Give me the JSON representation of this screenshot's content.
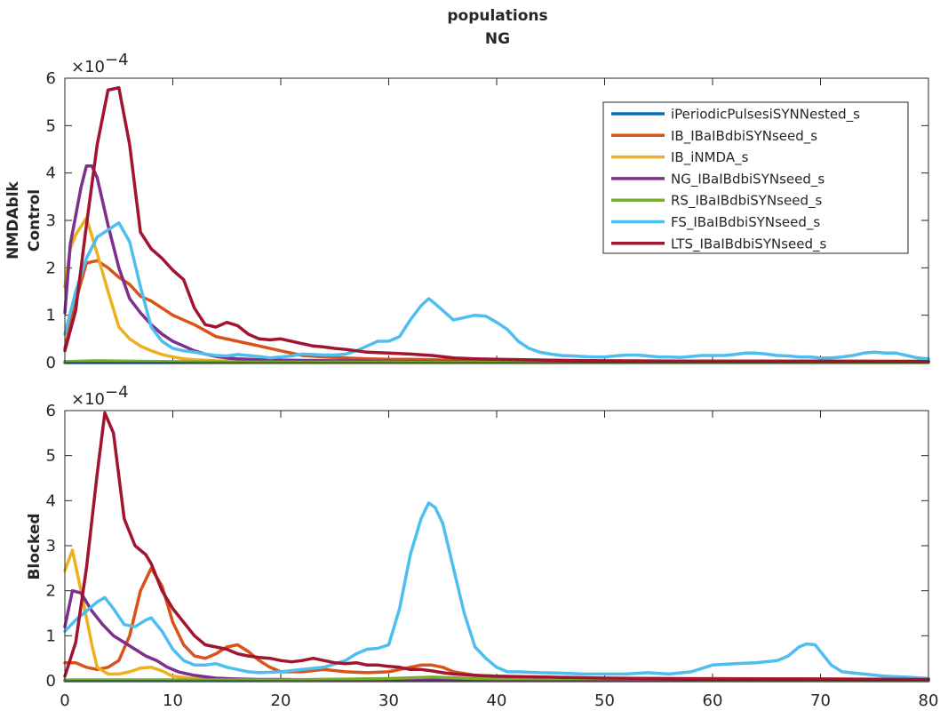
{
  "figure": {
    "title_line1": "populations",
    "title_line2": "NG"
  },
  "chart_data": [
    {
      "type": "line",
      "panel": "top",
      "ylabel_line1": "NMDAblk",
      "ylabel_line2": "Control",
      "xlim": [
        0,
        80
      ],
      "ylim": [
        0,
        6
      ],
      "y_multiplier_label": "×10",
      "y_multiplier_exponent": "−4",
      "xticks": [],
      "yticks": [
        "0",
        "1",
        "2",
        "3",
        "4",
        "5",
        "6"
      ],
      "legend": {
        "placement": "top-right"
      },
      "series": [
        {
          "name": "iPeriodicPulsesiSYNNested_s",
          "color": "#0072bd",
          "x": [
            0,
            80
          ],
          "y": [
            0,
            0
          ]
        },
        {
          "name": "IB_IBaIBdbiSYNseed_s",
          "color": "#d95319",
          "x": [
            0,
            1,
            2,
            3,
            4,
            5,
            6,
            7,
            8,
            9,
            10,
            12,
            14,
            16,
            18,
            20,
            22,
            24,
            26,
            28,
            30,
            32,
            34,
            36,
            38,
            40,
            45,
            50,
            60,
            70,
            80
          ],
          "y": [
            0.3,
            1.3,
            2.1,
            2.15,
            2.0,
            1.8,
            1.65,
            1.4,
            1.3,
            1.15,
            1.0,
            0.8,
            0.55,
            0.45,
            0.35,
            0.25,
            0.15,
            0.12,
            0.1,
            0.08,
            0.07,
            0.07,
            0.06,
            0.05,
            0.05,
            0.04,
            0.03,
            0.03,
            0.03,
            0.03,
            0.03
          ]
        },
        {
          "name": "IB_iNMDA_s",
          "color": "#edb120",
          "x": [
            0,
            0.5,
            1,
            2,
            3,
            4,
            5,
            6,
            7,
            8,
            9,
            10,
            11,
            12,
            14,
            16,
            20,
            25,
            30,
            40,
            50,
            60,
            80
          ],
          "y": [
            1.6,
            2.4,
            2.7,
            3.05,
            2.3,
            1.5,
            0.75,
            0.5,
            0.35,
            0.25,
            0.17,
            0.12,
            0.08,
            0.06,
            0.04,
            0.03,
            0.02,
            0.02,
            0.02,
            0.02,
            0.02,
            0.02,
            0.02
          ]
        },
        {
          "name": "NG_IBaIBdbiSYNseed_s",
          "color": "#7e2f8e",
          "x": [
            0,
            0.5,
            1,
            1.5,
            2,
            2.5,
            3,
            4,
            5,
            6,
            7,
            8,
            9,
            10,
            11,
            12,
            13,
            14,
            15,
            16,
            18,
            20,
            25,
            30,
            40,
            50,
            60,
            70,
            80
          ],
          "y": [
            1.05,
            2.5,
            3.1,
            3.7,
            4.15,
            4.15,
            3.9,
            2.9,
            2.0,
            1.35,
            1.05,
            0.8,
            0.6,
            0.45,
            0.35,
            0.25,
            0.18,
            0.13,
            0.1,
            0.08,
            0.06,
            0.05,
            0.04,
            0.03,
            0.02,
            0.02,
            0.02,
            0.02,
            0.02
          ]
        },
        {
          "name": "RS_IBaIBdbiSYNseed_s",
          "color": "#77ac30",
          "x": [
            0,
            3,
            6,
            10,
            20,
            40,
            60,
            80
          ],
          "y": [
            0.02,
            0.04,
            0.03,
            0.02,
            0.01,
            0.01,
            0.01,
            0.01
          ]
        },
        {
          "name": "FS_IBaIBdbiSYNseed_s",
          "color": "#4dbeee",
          "x": [
            0,
            1,
            2,
            3,
            4,
            5,
            6,
            7,
            8,
            9,
            10,
            11,
            12,
            13,
            14,
            15,
            16,
            17,
            18,
            19,
            20,
            21,
            22,
            23,
            24,
            25,
            26,
            27,
            28,
            29,
            30,
            31,
            32,
            33,
            33.7,
            34,
            35,
            36,
            37,
            38,
            39,
            40,
            41,
            42,
            43,
            44,
            45,
            46,
            47,
            48,
            49,
            50,
            51,
            52,
            53,
            54,
            55,
            56,
            57,
            58,
            59,
            60,
            61,
            62,
            63,
            64,
            65,
            66,
            67,
            68,
            69,
            70,
            71,
            72,
            73,
            74,
            75,
            76,
            77,
            78,
            79,
            80
          ],
          "y": [
            0.6,
            1.5,
            2.2,
            2.65,
            2.8,
            2.95,
            2.55,
            1.6,
            0.75,
            0.45,
            0.3,
            0.25,
            0.22,
            0.18,
            0.15,
            0.14,
            0.17,
            0.15,
            0.13,
            0.1,
            0.12,
            0.14,
            0.18,
            0.17,
            0.16,
            0.16,
            0.18,
            0.25,
            0.35,
            0.45,
            0.45,
            0.55,
            0.9,
            1.2,
            1.35,
            1.3,
            1.1,
            0.9,
            0.95,
            1.0,
            0.98,
            0.85,
            0.7,
            0.45,
            0.3,
            0.22,
            0.18,
            0.15,
            0.14,
            0.13,
            0.12,
            0.12,
            0.14,
            0.16,
            0.16,
            0.14,
            0.12,
            0.12,
            0.11,
            0.13,
            0.15,
            0.15,
            0.15,
            0.17,
            0.2,
            0.2,
            0.18,
            0.15,
            0.14,
            0.12,
            0.12,
            0.1,
            0.1,
            0.12,
            0.15,
            0.2,
            0.22,
            0.2,
            0.2,
            0.15,
            0.1,
            0.08
          ]
        },
        {
          "name": "LTS_IBaIBdbiSYNseed_s",
          "color": "#a2142f",
          "x": [
            0,
            1,
            2,
            3,
            4,
            5,
            6,
            7,
            8,
            9,
            10,
            11,
            12,
            13,
            14,
            15,
            16,
            17,
            18,
            19,
            20,
            21,
            22,
            23,
            24,
            25,
            26,
            27,
            28,
            30,
            32,
            34,
            36,
            38,
            40,
            45,
            50,
            60,
            70,
            80
          ],
          "y": [
            0.25,
            1.1,
            2.9,
            4.6,
            5.75,
            5.8,
            4.6,
            2.75,
            2.4,
            2.2,
            1.95,
            1.75,
            1.15,
            0.8,
            0.75,
            0.85,
            0.78,
            0.6,
            0.5,
            0.48,
            0.5,
            0.45,
            0.4,
            0.35,
            0.33,
            0.3,
            0.28,
            0.25,
            0.22,
            0.2,
            0.18,
            0.15,
            0.1,
            0.08,
            0.07,
            0.05,
            0.04,
            0.03,
            0.03,
            0.02
          ]
        }
      ]
    },
    {
      "type": "line",
      "panel": "bottom",
      "ylabel_line1": "",
      "ylabel_line2": "Blocked",
      "xlim": [
        0,
        80
      ],
      "ylim": [
        0,
        6
      ],
      "y_multiplier_label": "×10",
      "y_multiplier_exponent": "−4",
      "xticks": [
        "0",
        "10",
        "20",
        "30",
        "40",
        "50",
        "60",
        "70",
        "80"
      ],
      "yticks": [
        "0",
        "1",
        "2",
        "3",
        "4",
        "5",
        "6"
      ],
      "series": [
        {
          "name": "iPeriodicPulsesiSYNNested_s",
          "color": "#0072bd",
          "x": [
            0,
            80
          ],
          "y": [
            0,
            0
          ]
        },
        {
          "name": "IB_IBaIBdbiSYNseed_s",
          "color": "#d95319",
          "x": [
            0,
            1,
            2,
            3,
            4,
            5,
            6,
            7,
            8,
            9,
            10,
            11,
            12,
            13,
            14,
            15,
            16,
            17,
            18,
            19,
            20,
            22,
            24,
            26,
            28,
            30,
            32,
            33,
            34,
            35,
            36,
            38,
            40,
            45,
            50,
            60,
            70,
            80
          ],
          "y": [
            0.4,
            0.4,
            0.3,
            0.25,
            0.3,
            0.45,
            1.0,
            2.0,
            2.5,
            2.1,
            1.3,
            0.8,
            0.55,
            0.5,
            0.6,
            0.75,
            0.8,
            0.65,
            0.45,
            0.3,
            0.2,
            0.2,
            0.25,
            0.2,
            0.18,
            0.2,
            0.3,
            0.35,
            0.35,
            0.3,
            0.2,
            0.12,
            0.1,
            0.07,
            0.05,
            0.05,
            0.04,
            0.03
          ]
        },
        {
          "name": "IB_iNMDA_s",
          "color": "#edb120",
          "x": [
            0,
            0.7,
            1.5,
            2.5,
            3,
            4,
            5,
            6,
            7,
            8,
            9,
            10,
            12,
            15,
            20,
            30,
            40,
            60,
            80
          ],
          "y": [
            2.45,
            2.9,
            2.0,
            0.8,
            0.3,
            0.15,
            0.15,
            0.2,
            0.28,
            0.3,
            0.22,
            0.1,
            0.05,
            0.03,
            0.02,
            0.02,
            0.02,
            0.02,
            0.02
          ]
        },
        {
          "name": "NG_IBaIBdbiSYNseed_s",
          "color": "#7e2f8e",
          "x": [
            0,
            0.7,
            1.5,
            2.5,
            3.5,
            4.5,
            5.5,
            6.5,
            7.5,
            8.5,
            9.5,
            10.5,
            12,
            14,
            16,
            18,
            20,
            25,
            30,
            40,
            60,
            80
          ],
          "y": [
            1.2,
            2.0,
            1.95,
            1.55,
            1.25,
            1.0,
            0.85,
            0.7,
            0.55,
            0.45,
            0.3,
            0.2,
            0.12,
            0.06,
            0.04,
            0.03,
            0.03,
            0.02,
            0.02,
            0.02,
            0.02,
            0.02
          ]
        },
        {
          "name": "RS_IBaIBdbiSYNseed_s",
          "color": "#77ac30",
          "x": [
            0,
            5,
            10,
            20,
            30,
            34,
            38,
            45,
            60,
            80
          ],
          "y": [
            0.02,
            0.02,
            0.02,
            0.02,
            0.05,
            0.08,
            0.05,
            0.03,
            0.02,
            0.02
          ]
        },
        {
          "name": "FS_IBaIBdbiSYNseed_s",
          "color": "#4dbeee",
          "x": [
            0,
            1,
            2,
            3,
            3.7,
            4.5,
            5.5,
            6.5,
            7.5,
            8,
            9,
            10,
            11,
            12,
            13,
            14,
            15,
            16,
            17,
            18,
            20,
            22,
            24,
            26,
            27,
            28,
            29,
            30,
            31,
            32,
            33,
            33.7,
            34.3,
            35,
            36,
            37,
            38,
            39,
            40,
            41,
            42,
            44,
            46,
            48,
            50,
            52,
            54,
            56,
            58,
            60,
            62,
            64,
            66,
            67,
            68,
            68.7,
            69.5,
            70,
            71,
            72,
            74,
            76,
            78,
            80
          ],
          "y": [
            1.1,
            1.35,
            1.55,
            1.75,
            1.85,
            1.6,
            1.25,
            1.2,
            1.35,
            1.4,
            1.1,
            0.7,
            0.45,
            0.35,
            0.35,
            0.38,
            0.3,
            0.25,
            0.2,
            0.18,
            0.2,
            0.25,
            0.3,
            0.45,
            0.6,
            0.7,
            0.72,
            0.8,
            1.6,
            2.8,
            3.6,
            3.95,
            3.85,
            3.5,
            2.5,
            1.5,
            0.75,
            0.5,
            0.3,
            0.2,
            0.2,
            0.18,
            0.17,
            0.15,
            0.15,
            0.15,
            0.18,
            0.15,
            0.2,
            0.35,
            0.38,
            0.4,
            0.45,
            0.55,
            0.75,
            0.82,
            0.8,
            0.65,
            0.35,
            0.2,
            0.15,
            0.1,
            0.08,
            0.05
          ]
        },
        {
          "name": "LTS_IBaIBdbiSYNseed_s",
          "color": "#a2142f",
          "x": [
            0,
            1,
            2,
            3,
            3.7,
            4.5,
            5.5,
            6.5,
            7.5,
            8,
            9,
            10,
            11,
            12,
            13,
            14,
            15,
            16,
            17,
            18,
            19,
            20,
            21,
            22,
            23,
            24,
            25,
            26,
            27,
            28,
            29,
            30,
            31,
            32,
            33,
            34,
            35,
            36,
            38,
            40,
            45,
            50,
            60,
            70,
            80
          ],
          "y": [
            0.1,
            0.85,
            2.5,
            4.6,
            5.95,
            5.5,
            3.6,
            3.0,
            2.8,
            2.6,
            2.0,
            1.6,
            1.3,
            1.0,
            0.8,
            0.75,
            0.7,
            0.6,
            0.55,
            0.52,
            0.5,
            0.45,
            0.42,
            0.45,
            0.5,
            0.45,
            0.4,
            0.38,
            0.4,
            0.35,
            0.35,
            0.32,
            0.3,
            0.25,
            0.25,
            0.22,
            0.18,
            0.15,
            0.12,
            0.1,
            0.08,
            0.06,
            0.04,
            0.04,
            0.03
          ]
        }
      ]
    }
  ]
}
